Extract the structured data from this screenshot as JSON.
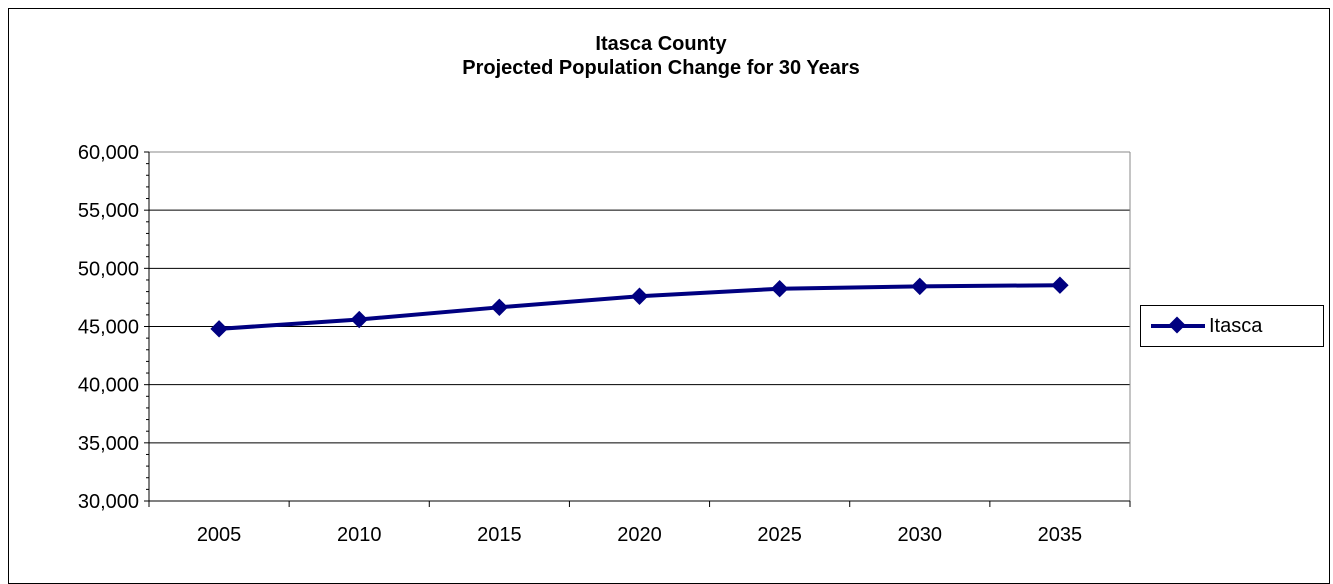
{
  "chart_data": {
    "type": "line",
    "title": "Itasca County",
    "subtitle": "Projected Population Change for 30 Years",
    "xlabel": "",
    "ylabel": "",
    "categories": [
      "2005",
      "2010",
      "2015",
      "2020",
      "2025",
      "2030",
      "2035"
    ],
    "series": [
      {
        "name": "Itasca",
        "values": [
          44800,
          45600,
          46650,
          47600,
          48250,
          48450,
          48550
        ]
      }
    ],
    "ylim": [
      30000,
      60000
    ],
    "yticks": [
      30000,
      35000,
      40000,
      45000,
      50000,
      55000,
      60000
    ],
    "ytick_labels": [
      "30,000",
      "35,000",
      "40,000",
      "45,000",
      "50,000",
      "55,000",
      "60,000"
    ],
    "grid": "horizontal",
    "legend_position": "right",
    "series_color": "#000080"
  }
}
